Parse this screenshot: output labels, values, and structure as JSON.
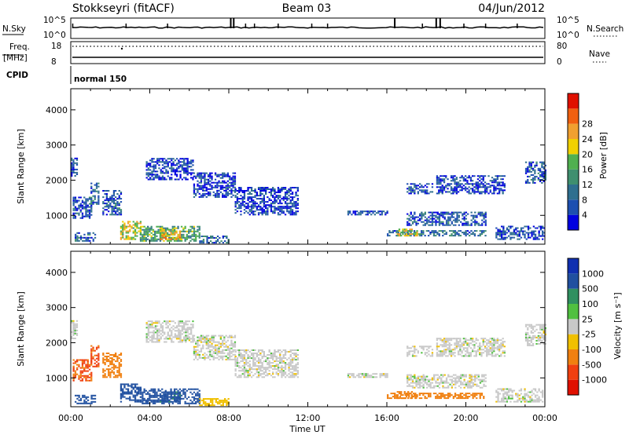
{
  "header": {
    "station": "Stokkseyri (fitACF)",
    "beam": "Beam 03",
    "date": "04/Jun/2012"
  },
  "status_panel": {
    "nsky_label": "N.Sky",
    "nsky_ticks": [
      "10^5",
      "10^0"
    ],
    "nsearch_label": "N.Search",
    "freq_label": "Freq.",
    "freq_unit": "[MHz]",
    "freq_ticks": [
      "18",
      "8"
    ],
    "nave_label": "Nave",
    "nave_ticks": [
      "80",
      "0"
    ],
    "cpid_label": "CPID",
    "cpid_text": "normal 150"
  },
  "colors": {
    "power_scale": [
      "#0000e0",
      "#1d4fb0",
      "#2f6f8f",
      "#3f8f6f",
      "#50b050",
      "#f0d000",
      "#f0a030",
      "#f06010",
      "#e01000"
    ],
    "velocity_scale": [
      "#1030b0",
      "#2050a0",
      "#309060",
      "#50c040",
      "#c8c8c8",
      "#f0c000",
      "#f08010",
      "#f04010",
      "#e01000"
    ]
  },
  "chart_data": [
    {
      "type": "heatmap",
      "name": "power",
      "xlabel": "",
      "ylabel": "Slant Range [km]",
      "x_ticks": [
        "00:00",
        "04:00",
        "08:00",
        "12:00",
        "16:00",
        "20:00",
        "00:00"
      ],
      "y_ticks": [
        "1000",
        "2000",
        "3000",
        "4000"
      ],
      "xlim": [
        0,
        24
      ],
      "ylim": [
        180,
        4600
      ],
      "colorbar": {
        "label": "Power [dB]",
        "ticks": [
          "4",
          "8",
          "12",
          "16",
          "20",
          "24",
          "28"
        ],
        "range": [
          0,
          30
        ]
      },
      "patches": [
        {
          "t0": 0.0,
          "t1": 0.3,
          "r0": 2100,
          "r1": 2600,
          "v": 5
        },
        {
          "t0": 0.1,
          "t1": 1.0,
          "r0": 900,
          "r1": 1500,
          "v": 6
        },
        {
          "t0": 1.0,
          "t1": 1.4,
          "r0": 1300,
          "r1": 1900,
          "v": 8
        },
        {
          "t0": 1.6,
          "t1": 2.5,
          "r0": 1000,
          "r1": 1700,
          "v": 6
        },
        {
          "t0": 0.2,
          "t1": 1.2,
          "r0": 250,
          "r1": 500,
          "v": 6
        },
        {
          "t0": 2.5,
          "t1": 3.5,
          "r0": 300,
          "r1": 800,
          "v": 18
        },
        {
          "t0": 3.5,
          "t1": 6.5,
          "r0": 250,
          "r1": 700,
          "v": 13
        },
        {
          "t0": 4.5,
          "t1": 5.5,
          "r0": 300,
          "r1": 600,
          "v": 20
        },
        {
          "t0": 6.5,
          "t1": 8.0,
          "r0": 200,
          "r1": 400,
          "v": 8
        },
        {
          "t0": 3.8,
          "t1": 6.2,
          "r0": 2000,
          "r1": 2600,
          "v": 4
        },
        {
          "t0": 6.2,
          "t1": 8.3,
          "r0": 1500,
          "r1": 2200,
          "v": 4
        },
        {
          "t0": 8.3,
          "t1": 11.5,
          "r0": 1000,
          "r1": 1800,
          "v": 4
        },
        {
          "t0": 14.0,
          "t1": 16.0,
          "r0": 1000,
          "r1": 1100,
          "v": 5
        },
        {
          "t0": 16.0,
          "t1": 21.0,
          "r0": 400,
          "r1": 550,
          "v": 8
        },
        {
          "t0": 16.5,
          "t1": 17.5,
          "r0": 400,
          "r1": 600,
          "v": 18
        },
        {
          "t0": 17.0,
          "t1": 21.0,
          "r0": 700,
          "r1": 1100,
          "v": 6
        },
        {
          "t0": 17.0,
          "t1": 18.3,
          "r0": 1600,
          "r1": 1900,
          "v": 6
        },
        {
          "t0": 18.5,
          "t1": 22.0,
          "r0": 1600,
          "r1": 2100,
          "v": 5
        },
        {
          "t0": 21.5,
          "t1": 24.0,
          "r0": 300,
          "r1": 700,
          "v": 5
        },
        {
          "t0": 23.0,
          "t1": 24.0,
          "r0": 1900,
          "r1": 2500,
          "v": 6
        }
      ]
    },
    {
      "type": "heatmap",
      "name": "velocity",
      "xlabel": "Time UT",
      "ylabel": "Slant Range [km]",
      "x_ticks": [
        "00:00",
        "04:00",
        "08:00",
        "12:00",
        "16:00",
        "20:00",
        "00:00"
      ],
      "y_ticks": [
        "1000",
        "2000",
        "3000",
        "4000"
      ],
      "xlim": [
        0,
        24
      ],
      "ylim": [
        180,
        4600
      ],
      "colorbar": {
        "label": "Velocity [m s⁻¹]",
        "ticks": [
          "1000",
          "500",
          "100",
          "25",
          "-25",
          "-100",
          "-500",
          "-1000"
        ],
        "levels": [
          1000,
          500,
          100,
          25,
          -25,
          -100,
          -500,
          -1000
        ]
      },
      "patches": [
        {
          "t0": 0.0,
          "t1": 0.3,
          "r0": 2100,
          "r1": 2600,
          "v": 0
        },
        {
          "t0": 0.1,
          "t1": 1.0,
          "r0": 900,
          "r1": 1500,
          "v": -600
        },
        {
          "t0": 1.0,
          "t1": 1.4,
          "r0": 1300,
          "r1": 1900,
          "v": -600
        },
        {
          "t0": 1.6,
          "t1": 2.5,
          "r0": 1000,
          "r1": 1700,
          "v": -300
        },
        {
          "t0": 0.2,
          "t1": 1.2,
          "r0": 250,
          "r1": 500,
          "v": 200
        },
        {
          "t0": 2.5,
          "t1": 3.5,
          "r0": 300,
          "r1": 800,
          "v": 300
        },
        {
          "t0": 3.5,
          "t1": 6.5,
          "r0": 250,
          "r1": 700,
          "v": 300
        },
        {
          "t0": 4.5,
          "t1": 5.5,
          "r0": 300,
          "r1": 600,
          "v": 150
        },
        {
          "t0": 6.5,
          "t1": 8.0,
          "r0": 200,
          "r1": 400,
          "v": -50
        },
        {
          "t0": 3.8,
          "t1": 6.2,
          "r0": 2000,
          "r1": 2600,
          "v": 0
        },
        {
          "t0": 6.2,
          "t1": 8.3,
          "r0": 1500,
          "r1": 2200,
          "v": 0
        },
        {
          "t0": 8.3,
          "t1": 11.5,
          "r0": 1000,
          "r1": 1800,
          "v": 0
        },
        {
          "t0": 14.0,
          "t1": 16.0,
          "r0": 1000,
          "r1": 1100,
          "v": 0
        },
        {
          "t0": 16.0,
          "t1": 21.0,
          "r0": 400,
          "r1": 550,
          "v": -300
        },
        {
          "t0": 16.5,
          "t1": 17.5,
          "r0": 400,
          "r1": 600,
          "v": -300
        },
        {
          "t0": 17.0,
          "t1": 21.0,
          "r0": 700,
          "r1": 1100,
          "v": 0
        },
        {
          "t0": 17.0,
          "t1": 18.3,
          "r0": 1600,
          "r1": 1900,
          "v": 0
        },
        {
          "t0": 18.5,
          "t1": 22.0,
          "r0": 1600,
          "r1": 2100,
          "v": 0
        },
        {
          "t0": 21.5,
          "t1": 24.0,
          "r0": 300,
          "r1": 700,
          "v": 0
        },
        {
          "t0": 23.0,
          "t1": 24.0,
          "r0": 1900,
          "r1": 2500,
          "v": 0
        }
      ]
    }
  ]
}
